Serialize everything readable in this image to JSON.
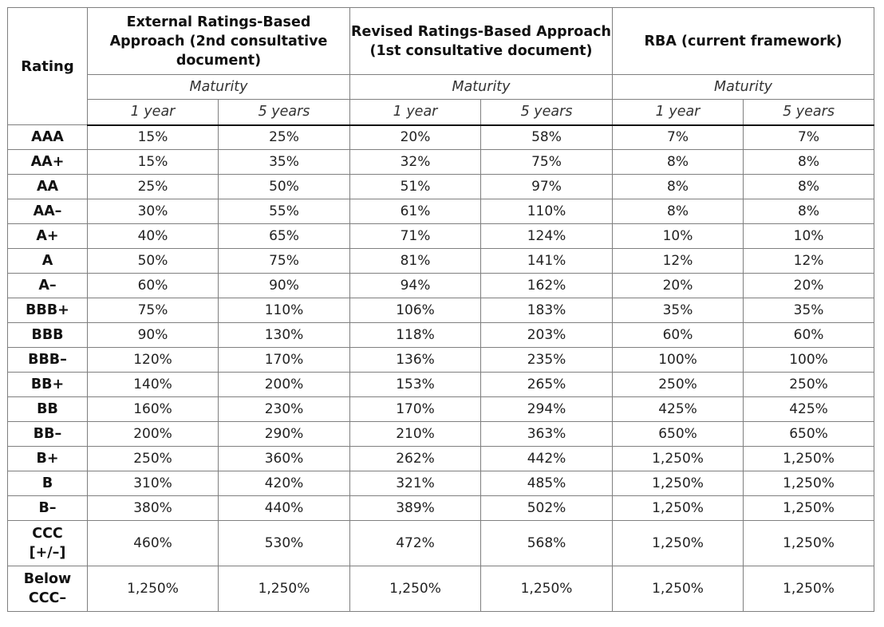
{
  "header": {
    "rating_label": "Rating",
    "groups": [
      {
        "line1": "External Ratings-Based",
        "line2": "Approach (2nd consultative",
        "line3": "document)"
      },
      {
        "line1": "Revised Ratings-Based Approach",
        "line2": "(1st consultative document)"
      },
      {
        "line1": "RBA (current framework)"
      }
    ],
    "maturity_label": "Maturity",
    "sub_1y": "1 year",
    "sub_5y": "5 years"
  },
  "rows": [
    {
      "r1": "AAA",
      "v": [
        "15%",
        "25%",
        "20%",
        "58%",
        "7%",
        "7%"
      ]
    },
    {
      "r1": "AA+",
      "v": [
        "15%",
        "35%",
        "32%",
        "75%",
        "8%",
        "8%"
      ]
    },
    {
      "r1": "AA",
      "v": [
        "25%",
        "50%",
        "51%",
        "97%",
        "8%",
        "8%"
      ]
    },
    {
      "r1": "AA–",
      "v": [
        "30%",
        "55%",
        "61%",
        "110%",
        "8%",
        "8%"
      ]
    },
    {
      "r1": "A+",
      "v": [
        "40%",
        "65%",
        "71%",
        "124%",
        "10%",
        "10%"
      ]
    },
    {
      "r1": "A",
      "v": [
        "50%",
        "75%",
        "81%",
        "141%",
        "12%",
        "12%"
      ]
    },
    {
      "r1": "A–",
      "v": [
        "60%",
        "90%",
        "94%",
        "162%",
        "20%",
        "20%"
      ]
    },
    {
      "r1": "BBB+",
      "v": [
        "75%",
        "110%",
        "106%",
        "183%",
        "35%",
        "35%"
      ]
    },
    {
      "r1": "BBB",
      "v": [
        "90%",
        "130%",
        "118%",
        "203%",
        "60%",
        "60%"
      ]
    },
    {
      "r1": "BBB–",
      "v": [
        "120%",
        "170%",
        "136%",
        "235%",
        "100%",
        "100%"
      ]
    },
    {
      "r1": "BB+",
      "v": [
        "140%",
        "200%",
        "153%",
        "265%",
        "250%",
        "250%"
      ]
    },
    {
      "r1": "BB",
      "v": [
        "160%",
        "230%",
        "170%",
        "294%",
        "425%",
        "425%"
      ]
    },
    {
      "r1": "BB–",
      "v": [
        "200%",
        "290%",
        "210%",
        "363%",
        "650%",
        "650%"
      ]
    },
    {
      "r1": "B+",
      "v": [
        "250%",
        "360%",
        "262%",
        "442%",
        "1,250%",
        "1,250%"
      ]
    },
    {
      "r1": "B",
      "v": [
        "310%",
        "420%",
        "321%",
        "485%",
        "1,250%",
        "1,250%"
      ]
    },
    {
      "r1": "B–",
      "v": [
        "380%",
        "440%",
        "389%",
        "502%",
        "1,250%",
        "1,250%"
      ]
    },
    {
      "r1": "CCC",
      "r2": "[+/–]",
      "v": [
        "460%",
        "530%",
        "472%",
        "568%",
        "1,250%",
        "1,250%"
      ]
    },
    {
      "r1": "Below",
      "r2": "CCC–",
      "v": [
        "1,250%",
        "1,250%",
        "1,250%",
        "1,250%",
        "1,250%",
        "1,250%"
      ]
    }
  ]
}
